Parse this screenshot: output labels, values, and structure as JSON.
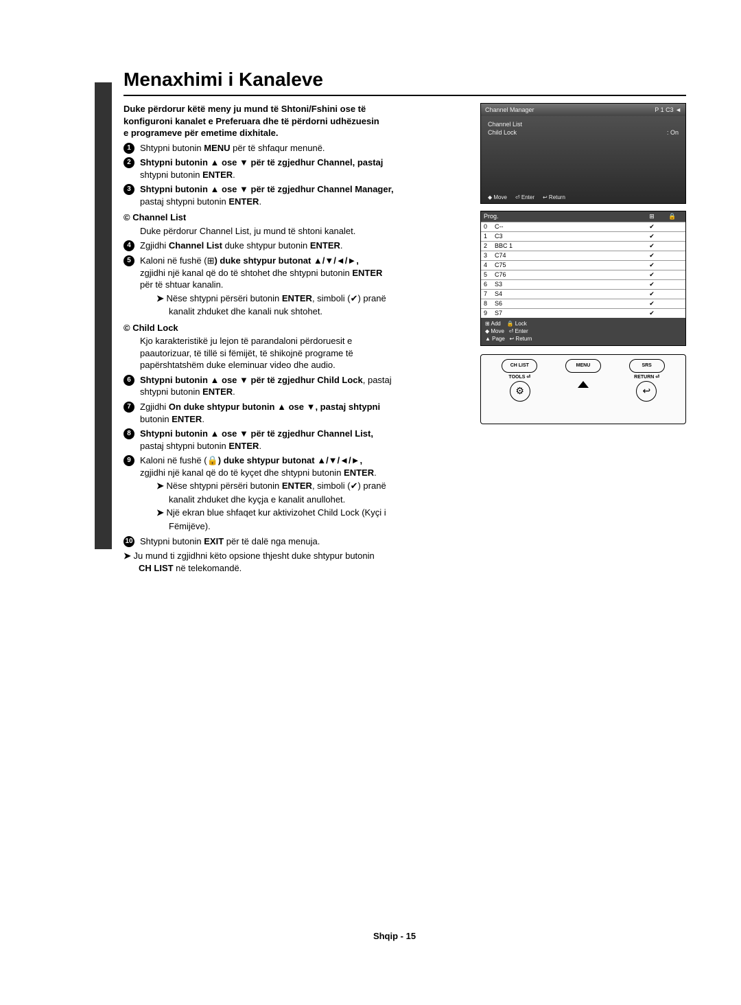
{
  "title": "Menaxhimi i Kanaleve",
  "subtitle1": "Duke përdorur këtë meny ju mund të Shtoni/Fshini ose të",
  "subtitle2": "konfiguroni kanalet e Preferuara dhe të përdorni udhëzuesin",
  "subtitle3": "e programeve për emetime dixhitale.",
  "steps": {
    "s1a": "Shtypni butonin ",
    "s1b": " për të shfaqur menunë.",
    "menu": "MENU",
    "s2a": "Shtypni butonin ▲ ose ▼ për të zgjedhur ",
    "s2b": ", pastaj",
    "channel": "Channel",
    "s2c": "shtypni butonin ",
    "enter": "ENTER",
    "s3a": "Shtypni butonin ▲ ose ▼ për të zgjedhur ",
    "chmanager": "Channel Manager",
    "s3c": "pastaj shtypni butonin ",
    "chlist_h": "Channel List",
    "chlist_t": "Duke përdorur Channel List, ju mund të shtoni kanalet.",
    "s4a": "Zgjidhi ",
    "s4b": " duke shtypur butonin ",
    "s5a": "Kaloni në fushë (",
    "s5b": ") duke shtypur butonat ▲/▼/◄/►,",
    "s5c": "zgjidhi një kanal që do të shtohet dhe shtypni butonin ",
    "s5d": "për të shtuar kanalin.",
    "note1a": "Nëse shtypni përsëri butonin ",
    "note1b": ", simboli (",
    "note1c": ") pranë",
    "note1d": "kanalit zhduket dhe kanali nuk shtohet.",
    "childlock_h": "Child Lock",
    "childlock_t1": "Kjo karakteristikë ju lejon të parandaloni përdoruesit e",
    "childlock_t2": "paautorizuar, të tillë si fëmijët, të shikojnë programe të",
    "childlock_t3": "papërshtatshëm duke eleminuar video dhe audio.",
    "s6a": "Shtypni butonin ▲ ose ▼ për të zgjedhur ",
    "childlock": "Child Lock",
    "s6b": ", pastaj",
    "s7a": "Zgjidhi ",
    "on": "On",
    "s7b": " duke shtypur butonin ▲ ose ▼, pastaj shtypni",
    "s7c": "butonin ",
    "s8a": "Shtypni butonin ▲ ose ▼ për të zgjedhur ",
    "s8c": "pastaj shtypni butonin ",
    "s9a": "Kaloni në fushë (",
    "s9b": ") duke shtypur butonat ▲/▼/◄/►,",
    "s9c": "zgjidhi një kanal që do të kyçet dhe shtypni butonin ",
    "note2a": "Nëse shtypni përsëri butonin ",
    "note2b": ", simboli (",
    "note2c": ") pranë",
    "note2d": "kanalit zhduket dhe kyçja e kanalit anullohet.",
    "note3a": "Një ekran blue shfaqet kur aktivizohet Child Lock (Kyçi i",
    "note3b": "Fëmijëve).",
    "s10a": "Shtypni butonin ",
    "exit": "EXIT",
    "s10b": " për të dalë nga menuja.",
    "tip1": "Ju mund ti zgjidhni këto opsione thjesht duke shtypur butonin",
    "chlistbtn": "CH LIST",
    "tip2": " në telekomandë."
  },
  "screenshot": {
    "header_l": "Channel Manager",
    "header_r": "P 1 C3 ◄",
    "row1_l": "Channel List",
    "row2_l": "Child Lock",
    "row2_r": ": On",
    "foot1": "◆ Move",
    "foot2": "⏎ Enter",
    "foot3": "↩ Return"
  },
  "table": {
    "col1": "",
    "col2": "Prog.",
    "iconsquare": "⊞",
    "iconlock": "🔒",
    "rows": [
      {
        "n": "0",
        "l": "C--"
      },
      {
        "n": "1",
        "l": "C3"
      },
      {
        "n": "2",
        "l": "BBC 1"
      },
      {
        "n": "3",
        "l": "C74"
      },
      {
        "n": "4",
        "l": "C75"
      },
      {
        "n": "5",
        "l": "C76"
      },
      {
        "n": "6",
        "l": "S3"
      },
      {
        "n": "7",
        "l": "S4"
      },
      {
        "n": "8",
        "l": "S6"
      },
      {
        "n": "9",
        "l": "S7"
      }
    ],
    "foot_line1": "⊞ Add    🔒 Lock",
    "foot_line2": "◆ Move   ⏎ Enter",
    "foot_line3": "▲ Page   ↩ Return"
  },
  "remote": {
    "l1": "CH LIST",
    "l2": "MENU",
    "l3": "SRS",
    "l4": "TOOLS",
    "l5": "RETURN"
  },
  "pagenum": "Shqip - 15"
}
